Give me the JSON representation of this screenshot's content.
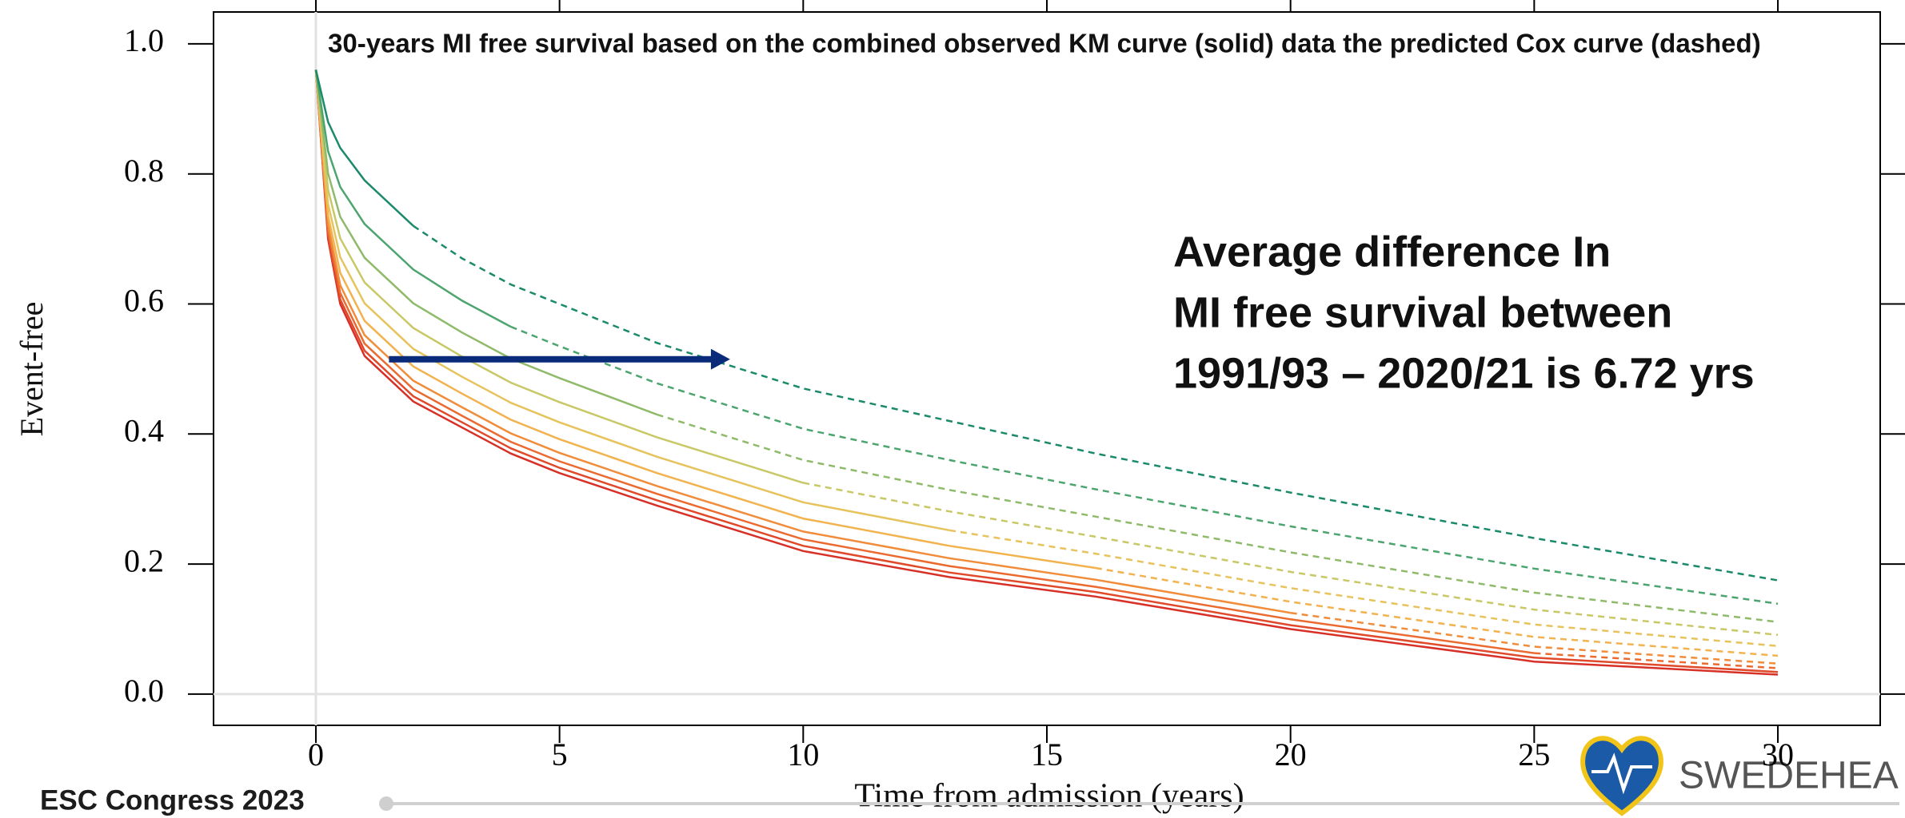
{
  "chart_data": {
    "type": "line",
    "title": "30-years MI free survival based on the combined observed  KM curve (solid) data the predicted Cox curve (dashed)",
    "x_label": "Time from admission (years)",
    "y_label": "Event-free",
    "annotation": [
      "Average difference In",
      "MI free survival between",
      "1991/93 – 2020/21 is 6.72 yrs"
    ],
    "arrow": {
      "x": [
        1.5,
        8.5
      ],
      "y": 0.515,
      "color": "#0a2a7a"
    },
    "x": [
      0,
      0.25,
      0.5,
      1,
      2,
      3,
      4,
      5,
      7,
      10,
      13,
      16,
      20,
      25,
      30
    ],
    "xlim": [
      -2.1,
      32.1
    ],
    "ylim": [
      -0.048,
      1.049
    ],
    "xticks": [
      0,
      5,
      10,
      15,
      20,
      25,
      30
    ],
    "yticks": [
      {
        "value": 0,
        "label": "0.0"
      },
      {
        "value": 0.2,
        "label": "0.2"
      },
      {
        "value": 0.4,
        "label": "0.4"
      },
      {
        "value": 0.6,
        "label": "0.6"
      },
      {
        "value": 0.8,
        "label": "0.8"
      },
      {
        "value": 1,
        "label": "1.0"
      }
    ],
    "series": [
      {
        "color": "#d73027",
        "values": [
          0.96,
          0.7,
          0.6,
          0.52,
          0.45,
          0.41,
          0.37,
          0.34,
          0.29,
          0.22,
          0.18,
          0.15,
          0.1,
          0.05,
          0.03
        ],
        "predicted": [
          null,
          null,
          null,
          null,
          null,
          null,
          null,
          null,
          null,
          null,
          null,
          null,
          null,
          null,
          0.03
        ]
      },
      {
        "color": "#e04a2a",
        "values": [
          0.96,
          0.705,
          0.607,
          0.528,
          0.458,
          0.418,
          0.378,
          0.348,
          0.298,
          0.228,
          0.187,
          0.157,
          0.106,
          0.056,
          0.034
        ],
        "predicted": [
          null,
          null,
          null,
          null,
          null,
          null,
          null,
          null,
          null,
          null,
          null,
          null,
          null,
          null,
          0.034
        ]
      },
      {
        "color": "#ea6a30",
        "values": [
          0.96,
          0.713,
          0.617,
          0.539,
          0.469,
          0.428,
          0.388,
          0.358,
          0.308,
          0.238,
          0.197,
          0.165,
          0.115,
          0.063,
          null
        ],
        "predicted": [
          null,
          null,
          null,
          null,
          null,
          null,
          null,
          null,
          null,
          null,
          null,
          null,
          null,
          0.063,
          0.04
        ]
      },
      {
        "color": "#f08c3a",
        "values": [
          0.96,
          0.722,
          0.629,
          0.552,
          0.482,
          0.441,
          0.401,
          0.371,
          0.32,
          0.25,
          0.209,
          0.176,
          0.125,
          null,
          null
        ],
        "predicted": [
          null,
          null,
          null,
          null,
          null,
          null,
          null,
          null,
          null,
          null,
          null,
          null,
          0.125,
          0.073,
          0.047
        ]
      },
      {
        "color": "#f2b24e",
        "values": [
          0.96,
          0.736,
          0.648,
          0.574,
          0.504,
          0.462,
          0.422,
          0.392,
          0.34,
          0.27,
          0.228,
          0.194,
          null,
          null,
          null
        ],
        "predicted": [
          null,
          null,
          null,
          null,
          null,
          null,
          null,
          null,
          null,
          null,
          null,
          0.194,
          0.142,
          0.088,
          0.059
        ]
      },
      {
        "color": "#e6c35c",
        "values": [
          0.96,
          0.754,
          0.672,
          0.601,
          0.531,
          0.488,
          0.448,
          0.418,
          0.365,
          0.295,
          0.252,
          null,
          null,
          null,
          null
        ],
        "predicted": [
          null,
          null,
          null,
          null,
          null,
          null,
          null,
          null,
          null,
          null,
          0.252,
          0.216,
          0.163,
          0.107,
          0.074
        ]
      },
      {
        "color": "#c8c866",
        "values": [
          0.96,
          0.776,
          0.701,
          0.633,
          0.563,
          0.519,
          0.479,
          0.449,
          0.395,
          0.325,
          null,
          null,
          null,
          null,
          null
        ],
        "predicted": [
          null,
          null,
          null,
          null,
          null,
          null,
          null,
          null,
          null,
          0.325,
          0.281,
          0.242,
          0.188,
          0.13,
          0.091
        ]
      },
      {
        "color": "#8fba6a",
        "values": [
          0.96,
          0.801,
          0.734,
          0.671,
          0.601,
          0.556,
          0.516,
          0.486,
          0.43,
          null,
          null,
          null,
          null,
          null,
          null
        ],
        "predicted": [
          null,
          null,
          null,
          null,
          null,
          null,
          null,
          null,
          0.43,
          0.36,
          0.314,
          0.273,
          0.218,
          0.156,
          0.111
        ]
      },
      {
        "color": "#4ca56e",
        "values": [
          0.96,
          0.835,
          0.78,
          0.723,
          0.653,
          0.605,
          0.565,
          null,
          null,
          null,
          null,
          null,
          null,
          null,
          null
        ],
        "predicted": [
          null,
          null,
          null,
          null,
          null,
          null,
          0.565,
          0.535,
          0.478,
          0.408,
          0.36,
          0.315,
          0.258,
          0.193,
          0.139
        ]
      },
      {
        "color": "#1a8a6a",
        "values": [
          0.96,
          0.88,
          0.84,
          0.79,
          0.72,
          null,
          null,
          null,
          null,
          null,
          null,
          null,
          null,
          null,
          null
        ],
        "predicted": [
          null,
          null,
          null,
          null,
          0.72,
          0.67,
          0.63,
          0.6,
          0.54,
          0.47,
          0.42,
          0.37,
          0.31,
          0.24,
          0.175
        ]
      }
    ]
  },
  "footer": {
    "event": "ESC Congress 2023",
    "logo": "SWEDEHEA"
  }
}
